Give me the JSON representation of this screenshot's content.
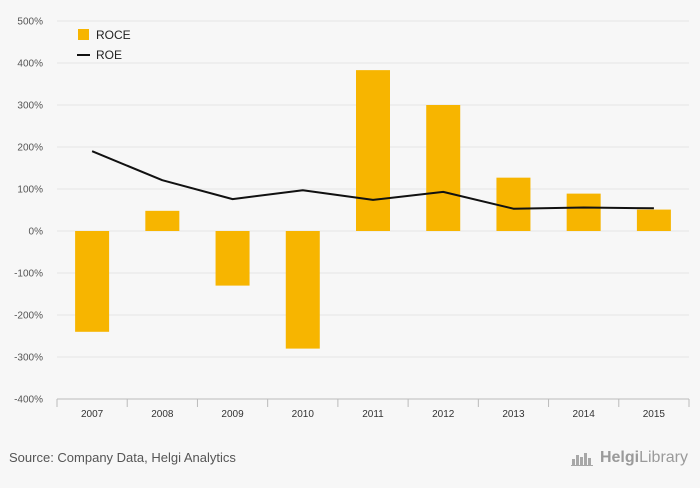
{
  "chart_data": {
    "type": "bar",
    "categories": [
      "2007",
      "2008",
      "2009",
      "2010",
      "2011",
      "2012",
      "2013",
      "2014",
      "2015"
    ],
    "series": [
      {
        "name": "ROCE",
        "type": "bar",
        "color": "#f7b500",
        "values": [
          -240,
          48,
          -130,
          -280,
          383,
          300,
          127,
          89,
          51
        ]
      },
      {
        "name": "ROE",
        "type": "line",
        "color": "#111111",
        "values": [
          190,
          121,
          76,
          97,
          74,
          93,
          53,
          56,
          54
        ]
      }
    ],
    "ylim": [
      -400,
      500
    ],
    "yticks": [
      "-400%",
      "-300%",
      "-200%",
      "-100%",
      "0%",
      "100%",
      "200%",
      "300%",
      "400%",
      "500%"
    ],
    "grid": true,
    "legend": "top-left"
  },
  "footer": {
    "source": "Source: Company Data, Helgi Analytics",
    "brand_a": "Helgi",
    "brand_b": "Library"
  }
}
